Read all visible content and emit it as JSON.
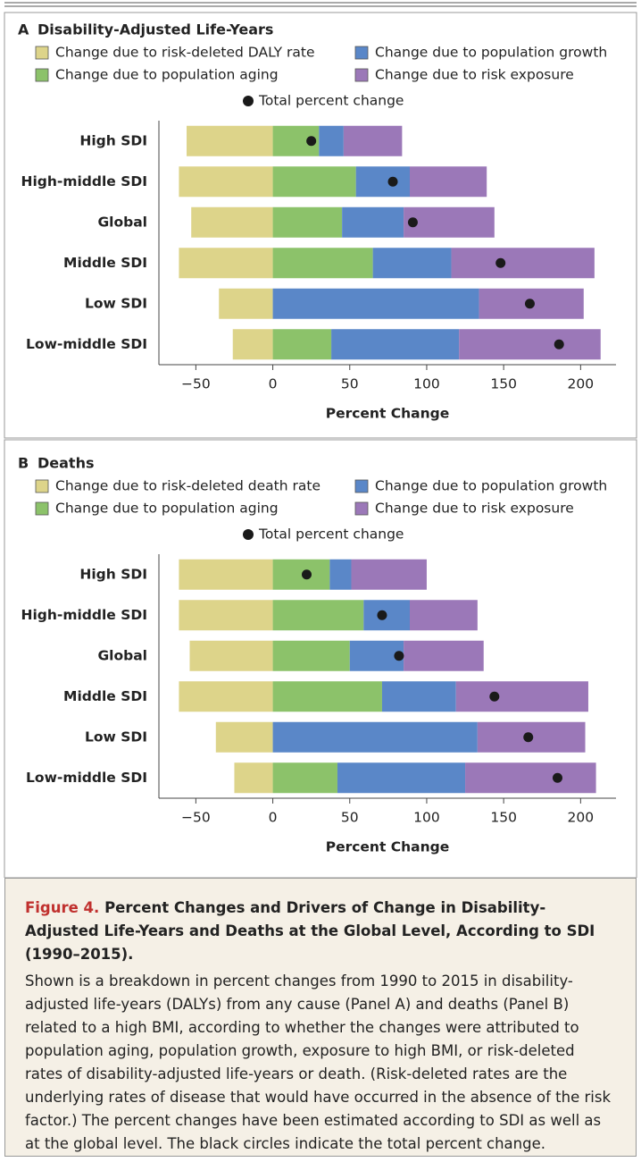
{
  "chart_data": [
    {
      "type": "bar",
      "panel": "A",
      "title": "Disability-Adjusted Life-Years",
      "categories": [
        "High SDI",
        "High-middle SDI",
        "Global",
        "Middle SDI",
        "Low SDI",
        "Low-middle SDI"
      ],
      "series": [
        {
          "name": "Change due to risk-deleted DALY rate",
          "color": "#ddd48a",
          "values": [
            -56,
            -61,
            -53,
            -61,
            -35,
            -26
          ]
        },
        {
          "name": "Change due to population aging",
          "color": "#8cc26a",
          "values": [
            30,
            54,
            45,
            65,
            0,
            38
          ]
        },
        {
          "name": "Change due to population growth",
          "color": "#5a87c8",
          "values": [
            16,
            35,
            40,
            51,
            134,
            83
          ]
        },
        {
          "name": "Change due to risk exposure",
          "color": "#9b78b8",
          "values": [
            38,
            50,
            59,
            93,
            68,
            92
          ]
        }
      ],
      "total": {
        "name": "Total percent change",
        "color": "#1a1a1a",
        "values": [
          25,
          78,
          91,
          148,
          167,
          186
        ]
      },
      "xlabel": "Percent Change",
      "xlim": [
        -74,
        223
      ],
      "xticks": [
        {
          "value": -50,
          "label": "−50"
        },
        0,
        50,
        100,
        150,
        200
      ]
    },
    {
      "type": "bar",
      "panel": "B",
      "title": "Deaths",
      "categories": [
        "High SDI",
        "High-middle SDI",
        "Global",
        "Middle SDI",
        "Low SDI",
        "Low-middle SDI"
      ],
      "series": [
        {
          "name": "Change due to risk-deleted death rate",
          "color": "#ddd48a",
          "values": [
            -61,
            -61,
            -54,
            -61,
            -37,
            -25
          ]
        },
        {
          "name": "Change due to population aging",
          "color": "#8cc26a",
          "values": [
            37,
            59,
            50,
            71,
            0,
            42
          ]
        },
        {
          "name": "Change due to population growth",
          "color": "#5a87c8",
          "values": [
            14,
            30,
            35,
            48,
            133,
            83
          ]
        },
        {
          "name": "Change due to risk exposure",
          "color": "#9b78b8",
          "values": [
            49,
            44,
            52,
            86,
            70,
            85
          ]
        }
      ],
      "total": {
        "name": "Total percent change",
        "color": "#1a1a1a",
        "values": [
          22,
          71,
          82,
          144,
          166,
          185
        ]
      },
      "xlabel": "Percent Change",
      "xlim": [
        -74,
        223
      ],
      "xticks": [
        {
          "value": -50,
          "label": "−50"
        },
        0,
        50,
        100,
        150,
        200
      ]
    }
  ],
  "caption": {
    "label": "Figure 4.",
    "title": "Percent Changes and Drivers of Change in Disability-Adjusted Life-Years and Deaths at the Global Level, According to SDI (1990–2015).",
    "body": "Shown is a breakdown in percent changes from 1990 to 2015 in disability-adjusted life-years (DALYs) from any cause (Panel A) and deaths (Panel B) related to a high BMI, according to whether the changes were attributed to population aging, population growth, exposure to high BMI, or risk-deleted rates of disability-adjusted life-years or death. (Risk-deleted rates are the underlying rates of disease that would have occurred in the absence of the risk factor.) The percent changes have been estimated according to SDI as well as at the global level. The black circles indicate the total percent change."
  }
}
